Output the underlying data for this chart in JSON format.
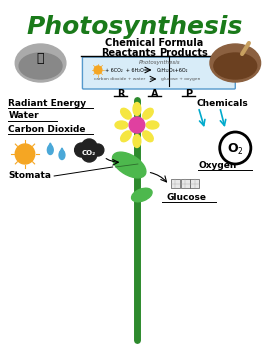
{
  "title": "Photosynthesis",
  "title_color": "#1a7a1a",
  "title_fontsize": 18,
  "bg_color": "#ffffff",
  "section_header": "Chemical Formula",
  "col_reactants": "Reactants",
  "col_products": "Products",
  "photosynthesis_label": "Photosynthesis",
  "r_label": "R",
  "a_label": "A",
  "p_label": "P",
  "left_labels": [
    "Radiant Energy",
    "Water",
    "Carbon Dioxide"
  ],
  "stomata_label": "Stomata",
  "right_labels": [
    "Chemicals",
    "Oxygen",
    "Glucose"
  ],
  "stem_color": "#2d8a2d",
  "leaf_color": "#4db84d",
  "flower_petal_color": "#f5e642",
  "flower_center_color": "#e040a0",
  "cyan_arrow_color": "#00aacc",
  "sun_color": "#f5a623",
  "co2_color": "#222222"
}
